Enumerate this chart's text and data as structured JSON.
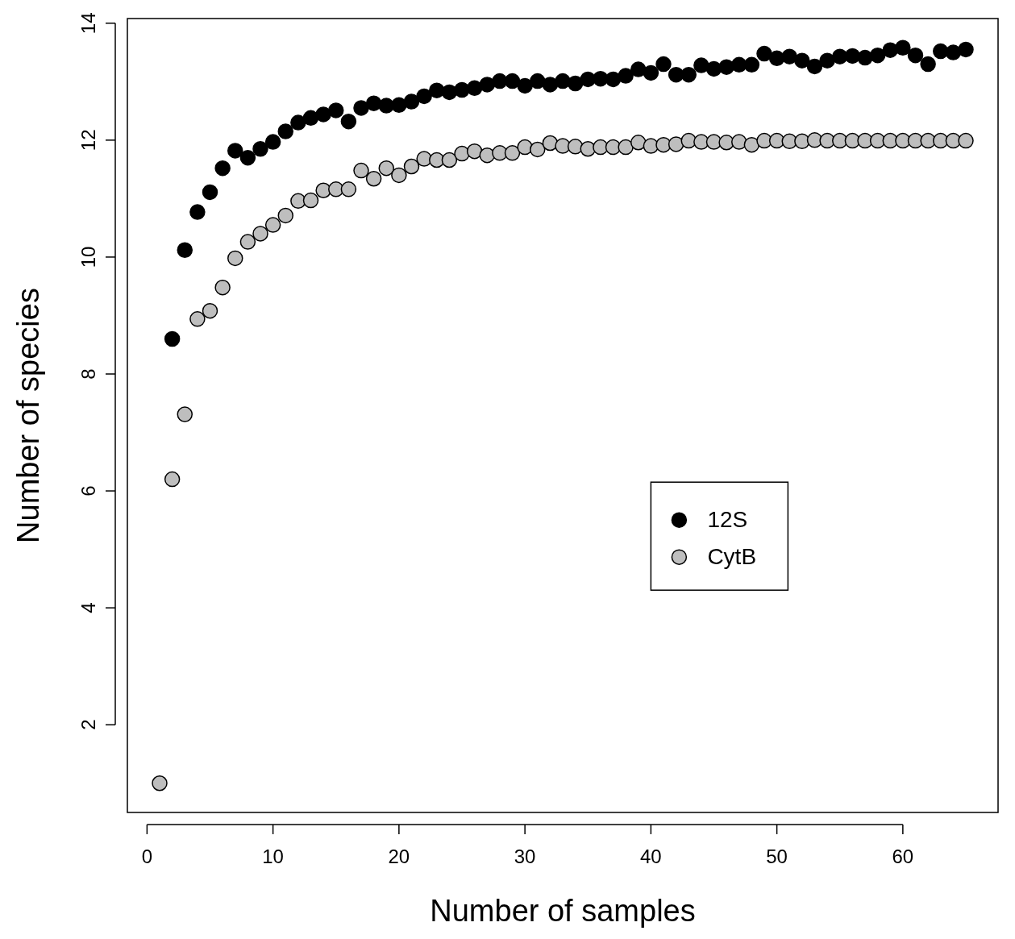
{
  "chart_data": {
    "type": "scatter",
    "xlabel": "Number of samples",
    "ylabel": "Number of species",
    "xlim": [
      -1.56,
      67.56
    ],
    "ylim": [
      0.5,
      14.08
    ],
    "xticks": [
      0,
      10,
      20,
      30,
      40,
      50,
      60
    ],
    "yticks": [
      2,
      4,
      6,
      8,
      10,
      12,
      14
    ],
    "grid": false,
    "legend": "right",
    "marker": "circle",
    "series": [
      {
        "name": "12S",
        "color": "#000000",
        "x": [
          2,
          3,
          4,
          5,
          6,
          7,
          8,
          9,
          10,
          11,
          12,
          13,
          14,
          15,
          16,
          17,
          18,
          19,
          20,
          21,
          22,
          23,
          24,
          25,
          26,
          27,
          28,
          29,
          30,
          31,
          32,
          33,
          34,
          35,
          36,
          37,
          38,
          39,
          40,
          41,
          42,
          43,
          44,
          45,
          46,
          47,
          48,
          49,
          50,
          51,
          52,
          53,
          54,
          55,
          56,
          57,
          58,
          59,
          60,
          61,
          62,
          63,
          64,
          65
        ],
        "values": [
          8.6,
          10.12,
          10.77,
          11.11,
          11.52,
          11.82,
          11.7,
          11.85,
          11.97,
          12.15,
          12.3,
          12.38,
          12.44,
          12.51,
          12.32,
          12.55,
          12.63,
          12.59,
          12.6,
          12.66,
          12.75,
          12.85,
          12.82,
          12.86,
          12.89,
          12.95,
          13.01,
          13.01,
          12.93,
          13.01,
          12.95,
          13.01,
          12.97,
          13.04,
          13.05,
          13.04,
          13.1,
          13.21,
          13.15,
          13.3,
          13.12,
          13.12,
          13.28,
          13.22,
          13.25,
          13.29,
          13.29,
          13.48,
          13.4,
          13.43,
          13.36,
          13.26,
          13.36,
          13.43,
          13.44,
          13.41,
          13.45,
          13.54,
          13.58,
          13.45,
          13.3,
          13.52,
          13.5,
          13.55
        ]
      },
      {
        "name": "CytB",
        "color": "#bebebe",
        "x": [
          1,
          2,
          3,
          4,
          5,
          6,
          7,
          8,
          9,
          10,
          11,
          12,
          13,
          14,
          15,
          16,
          17,
          18,
          19,
          20,
          21,
          22,
          23,
          24,
          25,
          26,
          27,
          28,
          29,
          30,
          31,
          32,
          33,
          34,
          35,
          36,
          37,
          38,
          39,
          40,
          41,
          42,
          43,
          44,
          45,
          46,
          47,
          48,
          49,
          50,
          51,
          52,
          53,
          54,
          55,
          56,
          57,
          58,
          59,
          60,
          61,
          62,
          63,
          64,
          65
        ],
        "values": [
          1,
          6.2,
          7.31,
          8.94,
          9.08,
          9.48,
          9.98,
          10.26,
          10.4,
          10.55,
          10.71,
          10.96,
          10.97,
          11.14,
          11.16,
          11.16,
          11.48,
          11.34,
          11.52,
          11.4,
          11.55,
          11.68,
          11.66,
          11.66,
          11.77,
          11.81,
          11.74,
          11.78,
          11.78,
          11.88,
          11.84,
          11.95,
          11.9,
          11.89,
          11.85,
          11.88,
          11.88,
          11.88,
          11.96,
          11.9,
          11.92,
          11.93,
          11.99,
          11.97,
          11.97,
          11.96,
          11.97,
          11.92,
          11.99,
          11.99,
          11.98,
          11.98,
          12,
          11.99,
          11.99,
          11.99,
          11.99,
          11.99,
          11.99,
          11.99,
          11.99,
          11.99,
          11.99,
          11.99,
          11.99
        ]
      }
    ]
  }
}
